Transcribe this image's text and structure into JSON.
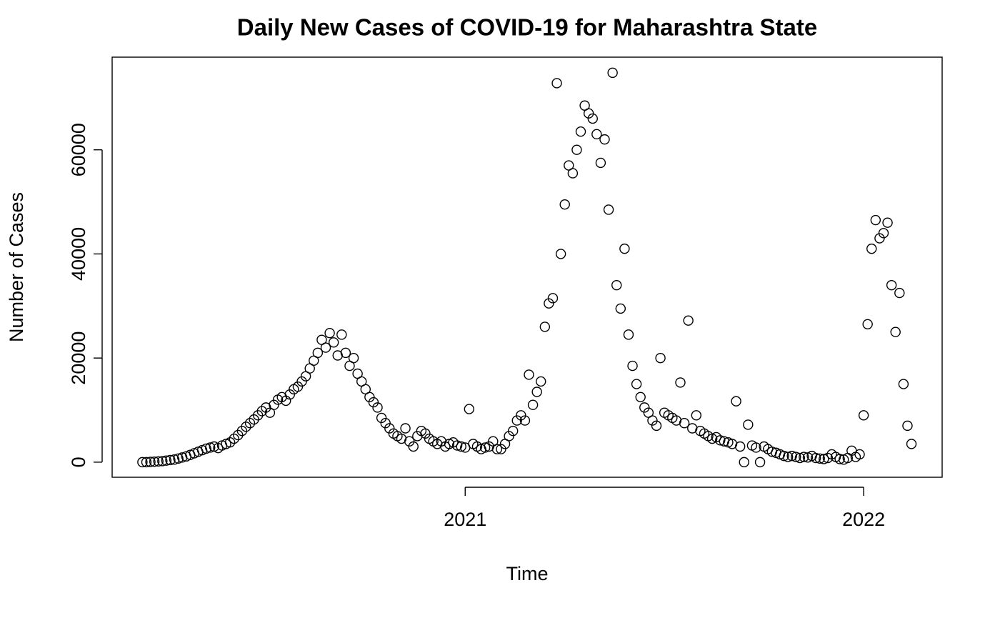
{
  "chart_data": {
    "type": "scatter",
    "title": "Daily New Cases of COVID-19 for Maharashtra State",
    "x_label": "Time",
    "y_label": "Number of Cases",
    "xlim": [
      2020.114,
      2022.197
    ],
    "ylim": [
      -2900,
      77800
    ],
    "xticks": [
      2021,
      2022
    ],
    "yticks": [
      0,
      20000,
      40000,
      60000
    ],
    "color": "#000000",
    "grid": false,
    "series": [
      {
        "x": [
          2020.19,
          2020.2,
          2020.21,
          2020.22,
          2020.23,
          2020.24,
          2020.25,
          2020.26,
          2020.27,
          2020.28,
          2020.29,
          2020.3,
          2020.31,
          2020.32,
          2020.33,
          2020.34,
          2020.35,
          2020.36,
          2020.37,
          2020.38,
          2020.39,
          2020.4,
          2020.41,
          2020.42,
          2020.43,
          2020.44,
          2020.45,
          2020.46,
          2020.47,
          2020.48,
          2020.49,
          2020.5,
          2020.51,
          2020.52,
          2020.53,
          2020.54,
          2020.55,
          2020.56,
          2020.57,
          2020.58,
          2020.59,
          2020.6,
          2020.61,
          2020.62,
          2020.63,
          2020.64,
          2020.65,
          2020.66,
          2020.67,
          2020.68,
          2020.69,
          2020.7,
          2020.71,
          2020.72,
          2020.73,
          2020.74,
          2020.75,
          2020.76,
          2020.77,
          2020.78,
          2020.79,
          2020.8,
          2020.81,
          2020.82,
          2020.83,
          2020.84,
          2020.85,
          2020.86,
          2020.87,
          2020.88,
          2020.89,
          2020.9,
          2020.91,
          2020.92,
          2020.93,
          2020.94,
          2020.95,
          2020.96,
          2020.97,
          2020.98,
          2020.99,
          2021.0,
          2021.01,
          2021.02,
          2021.03,
          2021.04,
          2021.05,
          2021.06,
          2021.07,
          2021.08,
          2021.09,
          2021.1,
          2021.11,
          2021.12,
          2021.13,
          2021.14,
          2021.15,
          2021.16,
          2021.17,
          2021.18,
          2021.19,
          2021.2,
          2021.21,
          2021.22,
          2021.23,
          2021.24,
          2021.25,
          2021.26,
          2021.27,
          2021.28,
          2021.29,
          2021.3,
          2021.31,
          2021.32,
          2021.33,
          2021.34,
          2021.35,
          2021.36,
          2021.37,
          2021.38,
          2021.39,
          2021.4,
          2021.41,
          2021.42,
          2021.43,
          2021.44,
          2021.45,
          2021.46,
          2021.47,
          2021.48,
          2021.49,
          2021.5,
          2021.51,
          2021.52,
          2021.53,
          2021.54,
          2021.55,
          2021.56,
          2021.57,
          2021.58,
          2021.59,
          2021.6,
          2021.61,
          2021.62,
          2021.63,
          2021.64,
          2021.65,
          2021.66,
          2021.67,
          2021.68,
          2021.69,
          2021.7,
          2021.71,
          2021.72,
          2021.73,
          2021.74,
          2021.75,
          2021.76,
          2021.77,
          2021.78,
          2021.79,
          2021.8,
          2021.81,
          2021.82,
          2021.83,
          2021.84,
          2021.85,
          2021.86,
          2021.87,
          2021.88,
          2021.89,
          2021.9,
          2021.91,
          2021.92,
          2021.93,
          2021.94,
          2021.95,
          2021.96,
          2021.97,
          2021.98,
          2021.99,
          2022.0,
          2022.01,
          2022.02,
          2022.03,
          2022.04,
          2022.05,
          2022.06,
          2022.07,
          2022.08,
          2022.09,
          2022.1,
          2022.11,
          2022.12
        ],
        "values": [
          0,
          0,
          50,
          100,
          150,
          200,
          300,
          400,
          500,
          700,
          900,
          1100,
          1400,
          1700,
          2000,
          2300,
          2600,
          2800,
          3000,
          2700,
          3200,
          3500,
          3800,
          4500,
          5200,
          6000,
          6800,
          7500,
          8200,
          9000,
          9800,
          10500,
          9500,
          11000,
          12000,
          12500,
          11800,
          13000,
          14000,
          14500,
          15500,
          16500,
          18000,
          19500,
          21000,
          23500,
          22000,
          24800,
          23000,
          20500,
          24500,
          21000,
          18500,
          20000,
          17000,
          15500,
          14000,
          12500,
          11500,
          10500,
          8500,
          7500,
          6500,
          5500,
          5000,
          4500,
          6500,
          4000,
          3000,
          5000,
          6000,
          5500,
          4500,
          4000,
          3500,
          4000,
          3000,
          3500,
          3800,
          3200,
          3000,
          2800,
          10200,
          3500,
          3000,
          2500,
          2800,
          3000,
          4000,
          2500,
          2500,
          3500,
          5000,
          6000,
          8000,
          9000,
          8000,
          16800,
          11000,
          13500,
          15500,
          26000,
          30500,
          31500,
          72800,
          40000,
          49500,
          57000,
          55500,
          60000,
          63500,
          68500,
          67000,
          66000,
          63000,
          57500,
          62000,
          48500,
          74800,
          34000,
          29500,
          41000,
          24500,
          18500,
          15000,
          12500,
          10500,
          9500,
          8000,
          7000,
          20000,
          9500,
          9000,
          8500,
          8000,
          15300,
          7500,
          27200,
          6500,
          9000,
          6000,
          5500,
          5000,
          4500,
          4800,
          4200,
          4000,
          3800,
          3500,
          11700,
          3000,
          0,
          7200,
          3200,
          2800,
          0,
          3000,
          2500,
          2000,
          1800,
          1500,
          1200,
          1000,
          1200,
          1000,
          800,
          1000,
          900,
          1200,
          800,
          700,
          600,
          800,
          1500,
          1000,
          600,
          500,
          800,
          2200,
          1000,
          1500,
          9000,
          26500,
          41000,
          46500,
          43000,
          44000,
          46000,
          34000,
          25000,
          32500,
          15000,
          7000,
          3500
        ]
      }
    ]
  }
}
